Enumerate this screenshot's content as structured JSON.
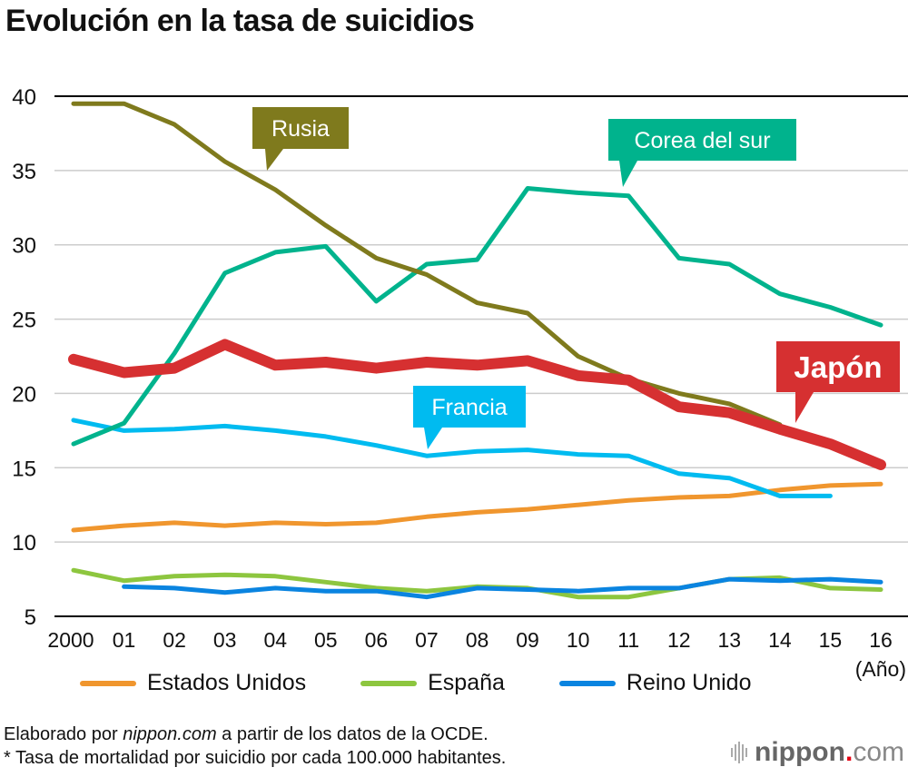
{
  "chart_data": {
    "type": "line",
    "title": "Evolución en la tasa de suicidios",
    "xlabel": "(Año)",
    "ylabel": "",
    "x": [
      2000,
      2001,
      2002,
      2003,
      2004,
      2005,
      2006,
      2007,
      2008,
      2009,
      2010,
      2011,
      2012,
      2013,
      2014,
      2015,
      2016
    ],
    "x_tick_labels": [
      "2000",
      "01",
      "02",
      "03",
      "04",
      "05",
      "06",
      "07",
      "08",
      "09",
      "10",
      "11",
      "12",
      "13",
      "14",
      "15",
      "16"
    ],
    "ylim": [
      5,
      40
    ],
    "y_ticks": [
      5,
      10,
      15,
      20,
      25,
      30,
      35,
      40
    ],
    "grid": true,
    "series": [
      {
        "name": "Rusia",
        "color": "#7f7a1d",
        "labeled": "callout",
        "values": [
          39.5,
          39.5,
          38.1,
          35.6,
          33.7,
          31.3,
          29.1,
          28.0,
          26.1,
          25.4,
          22.5,
          21.0,
          20.0,
          19.3,
          17.9,
          null,
          null
        ]
      },
      {
        "name": "Corea del sur",
        "color": "#00b38d",
        "labeled": "callout",
        "values": [
          16.6,
          18.0,
          22.7,
          28.1,
          29.5,
          29.9,
          26.2,
          28.7,
          29.0,
          33.8,
          33.5,
          33.3,
          29.1,
          28.7,
          26.7,
          25.8,
          24.6
        ]
      },
      {
        "name": "Japón",
        "color": "#d63031",
        "labeled": "callout",
        "emphasis": true,
        "values": [
          22.3,
          21.4,
          21.7,
          23.3,
          21.9,
          22.1,
          21.7,
          22.1,
          21.9,
          22.2,
          21.2,
          20.9,
          19.1,
          18.7,
          17.6,
          16.6,
          15.2
        ]
      },
      {
        "name": "Francia",
        "color": "#00bbf0",
        "labeled": "callout",
        "values": [
          18.2,
          17.5,
          17.6,
          17.8,
          17.5,
          17.1,
          16.5,
          15.8,
          16.1,
          16.2,
          15.9,
          15.8,
          14.6,
          14.3,
          13.1,
          13.1,
          null
        ]
      },
      {
        "name": "Estados Unidos",
        "color": "#f0962e",
        "labeled": "legend",
        "values": [
          10.8,
          11.1,
          11.3,
          11.1,
          11.3,
          11.2,
          11.3,
          11.7,
          12.0,
          12.2,
          12.5,
          12.8,
          13.0,
          13.1,
          13.5,
          13.8,
          13.9
        ]
      },
      {
        "name": "España",
        "color": "#8dc63f",
        "labeled": "legend",
        "values": [
          8.1,
          7.4,
          7.7,
          7.8,
          7.7,
          7.3,
          6.9,
          6.7,
          7.0,
          6.9,
          6.3,
          6.3,
          6.9,
          7.5,
          7.6,
          6.9,
          6.8
        ]
      },
      {
        "name": "Reino Unido",
        "color": "#0a84e0",
        "labeled": "legend",
        "values": [
          null,
          7.0,
          6.9,
          6.6,
          6.9,
          6.7,
          6.7,
          6.3,
          6.9,
          6.8,
          6.7,
          6.9,
          6.9,
          7.5,
          7.4,
          7.5,
          7.3
        ]
      }
    ],
    "callouts": [
      {
        "series": "Rusia",
        "text": "Rusia",
        "anchor_year": 2004
      },
      {
        "series": "Corea del sur",
        "text": "Corea del sur",
        "anchor_year": 2011
      },
      {
        "series": "Francia",
        "text": "Francia",
        "anchor_year": 2007
      },
      {
        "series": "Japón",
        "text": "Japón",
        "anchor_year": 2014.2
      }
    ],
    "legend": {
      "position": "bottom",
      "entries": [
        "Estados Unidos",
        "España",
        "Reino Unido"
      ]
    }
  },
  "footer": {
    "line1_prefix": "Elaborado por ",
    "line1_em": "nippon.com",
    "line1_suffix": " a partir de los datos de la OCDE.",
    "line2": "* Tasa de mortalidad por suicidio por cada 100.000 habitantes."
  },
  "logo": {
    "name": "nippon",
    "dot": ".",
    "tld": "com"
  }
}
